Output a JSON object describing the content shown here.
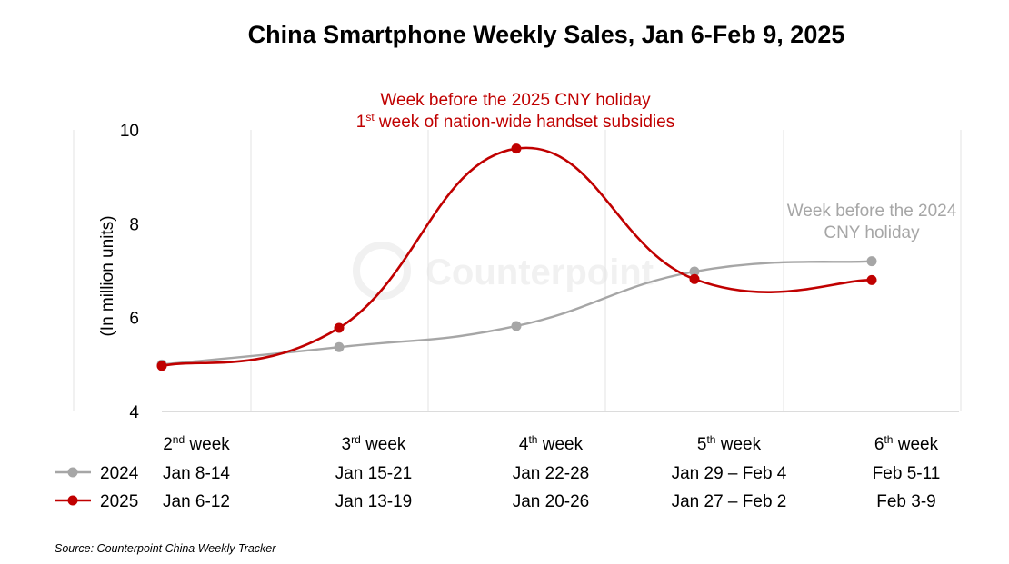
{
  "chart_data": {
    "type": "line",
    "title": "China Smartphone Weekly Sales, Jan 6-Feb 9, 2025",
    "ylabel": "(In million units)",
    "ylim": [
      4,
      10
    ],
    "yticks": [
      "4",
      "6",
      "8",
      "10"
    ],
    "grid": "vertical",
    "categories": [
      {
        "ordinal": "2",
        "suffix": "nd",
        "word": " week"
      },
      {
        "ordinal": "3",
        "suffix": "rd",
        "word": " week"
      },
      {
        "ordinal": "4",
        "suffix": "th",
        "word": " week"
      },
      {
        "ordinal": "5",
        "suffix": "th",
        "word": " week"
      },
      {
        "ordinal": "6",
        "suffix": "th",
        "word": " week"
      }
    ],
    "series": [
      {
        "name": "2024",
        "color": "#a6a6a6",
        "values": [
          5.0,
          5.37,
          5.82,
          6.98,
          7.2
        ],
        "date_labels": [
          "Jan 8-14",
          "Jan 15-21",
          "Jan 22-28",
          "Jan 29 – Feb 4",
          "Feb 5-11"
        ]
      },
      {
        "name": "2025",
        "color": "#c00000",
        "values": [
          4.97,
          5.78,
          9.6,
          6.82,
          6.8
        ],
        "date_labels": [
          "Jan 6-12",
          "Jan 13-19",
          "Jan 20-26",
          "Jan 27 – Feb 2",
          "Feb 3-9"
        ]
      }
    ],
    "annotations": [
      {
        "lines": [
          "Week before the 2025 CNY holiday",
          "1st week of nation-wide handset subsidies"
        ],
        "line2_parts": [
          "1",
          "st",
          " week of nation-wide handset subsidies"
        ],
        "color": "#c00000"
      },
      {
        "lines": [
          "Week before the 2024",
          "CNY holiday"
        ],
        "color": "#a6a6a6"
      }
    ],
    "source": "Source: Counterpoint China Weekly Tracker",
    "watermark": "Counterpoint"
  }
}
